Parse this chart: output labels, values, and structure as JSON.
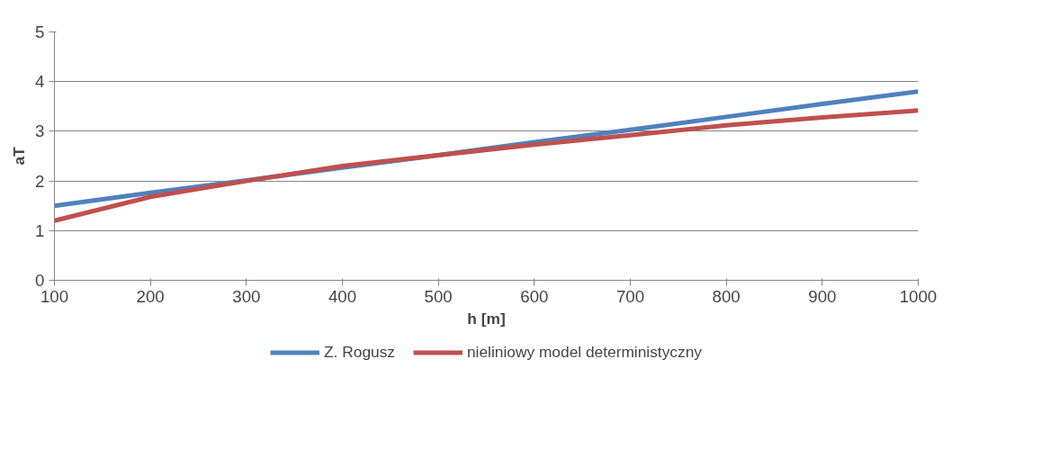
{
  "chart_data": {
    "type": "line",
    "xlabel": "h [m]",
    "ylabel": "aT",
    "x": [
      100,
      200,
      300,
      400,
      500,
      600,
      700,
      800,
      900,
      1000
    ],
    "series": [
      {
        "name": "Z. Rogusz",
        "color": "#4f81bd",
        "values": [
          1.5,
          1.76,
          2.01,
          2.27,
          2.52,
          2.78,
          3.03,
          3.29,
          3.55,
          3.8
        ]
      },
      {
        "name": "nieliniowy model deterministyczny",
        "color": "#c0504d",
        "values": [
          1.2,
          1.68,
          2.0,
          2.3,
          2.52,
          2.73,
          2.92,
          3.12,
          3.28,
          3.42
        ]
      }
    ],
    "xlim": [
      100,
      1000
    ],
    "xticks": [
      100,
      200,
      300,
      400,
      500,
      600,
      700,
      800,
      900,
      1000
    ],
    "ylim": [
      0,
      5
    ],
    "yticks": [
      0,
      1,
      2,
      3,
      4,
      5
    ],
    "grid": "y",
    "legend": "bottom",
    "marker": "none",
    "line_style": "solid"
  }
}
